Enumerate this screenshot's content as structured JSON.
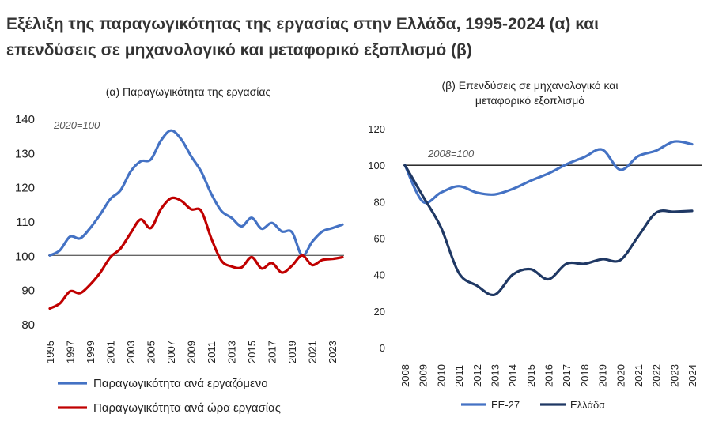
{
  "page_title": {
    "line1": "Εξέλιξη της παραγωγικότητας της εργασίας στην Ελλάδα, 1995-2024 (α) και",
    "line2": "επενδύσεις σε μηχανολογικό και μεταφορικό εξοπλισμό (β)"
  },
  "chart_data": [
    {
      "type": "line",
      "title": "(α) Παραγωγικότητα της εργασίας",
      "annotation": "2020=100",
      "ylim": [
        80,
        140
      ],
      "yticks": [
        80,
        90,
        100,
        110,
        120,
        130,
        140
      ],
      "reference_line": 100,
      "x": [
        1995,
        1996,
        1997,
        1998,
        1999,
        2000,
        2001,
        2002,
        2003,
        2004,
        2005,
        2006,
        2007,
        2008,
        2009,
        2010,
        2011,
        2012,
        2013,
        2014,
        2015,
        2016,
        2017,
        2018,
        2019,
        2020,
        2021,
        2022,
        2023,
        2024
      ],
      "x_tick_labels": [
        "1995",
        "1997",
        "1999",
        "2001",
        "2003",
        "2005",
        "2007",
        "2009",
        "2011",
        "2013",
        "2015",
        "2017",
        "2019",
        "2021",
        "2023"
      ],
      "series": [
        {
          "name": "Παραγωγικότητα ανά εργαζόμενο",
          "color": "#4472C4",
          "values": [
            100,
            101.5,
            105.5,
            105,
            108,
            112,
            116.5,
            119,
            124.5,
            127.5,
            128,
            133.5,
            136.5,
            134,
            129,
            124.5,
            118,
            113,
            111,
            108.5,
            111,
            107.8,
            109.5,
            107,
            106.8,
            100,
            104,
            107,
            108,
            109
          ]
        },
        {
          "name": "Παραγωγικότητα ανά ώρα εργασίας",
          "color": "#C00000",
          "values": [
            84.5,
            86,
            89.5,
            89,
            91.5,
            95,
            99.5,
            102,
            106.5,
            110.5,
            108,
            113.5,
            116.7,
            116,
            113.5,
            113,
            105,
            98.5,
            96.8,
            96.5,
            99.5,
            96.2,
            97.8,
            95,
            97,
            100,
            97.2,
            98.7,
            99,
            99.5
          ]
        }
      ]
    },
    {
      "type": "line",
      "title_line1": "(β) Επενδύσεις σε μηχανολογικό και",
      "title_line2": "μεταφορικό εξοπλισμό",
      "annotation": "2008=100",
      "ylim": [
        0,
        120
      ],
      "yticks": [
        0,
        20,
        40,
        60,
        80,
        100,
        120
      ],
      "reference_line": 100,
      "x": [
        2008,
        2009,
        2010,
        2011,
        2012,
        2013,
        2014,
        2015,
        2016,
        2017,
        2018,
        2019,
        2020,
        2021,
        2022,
        2023,
        2024
      ],
      "x_tick_labels": [
        "2008",
        "2009",
        "2010",
        "2011",
        "2012",
        "2013",
        "2014",
        "2015",
        "2016",
        "2017",
        "2018",
        "2019",
        "2020",
        "2021",
        "2022",
        "2023",
        "2024"
      ],
      "series": [
        {
          "name": "ΕΕ-27",
          "color": "#4472C4",
          "values": [
            100,
            80,
            85,
            88.5,
            85,
            84,
            87,
            91.5,
            95.5,
            100.5,
            104.5,
            108.5,
            97.5,
            105,
            108,
            113,
            111.5
          ]
        },
        {
          "name": "Ελλάδα",
          "color": "#1F3864",
          "values": [
            100,
            83,
            66,
            41,
            34,
            29,
            40,
            43,
            37.5,
            46,
            46,
            48.5,
            48,
            61,
            74,
            74.5,
            75
          ]
        }
      ]
    }
  ]
}
